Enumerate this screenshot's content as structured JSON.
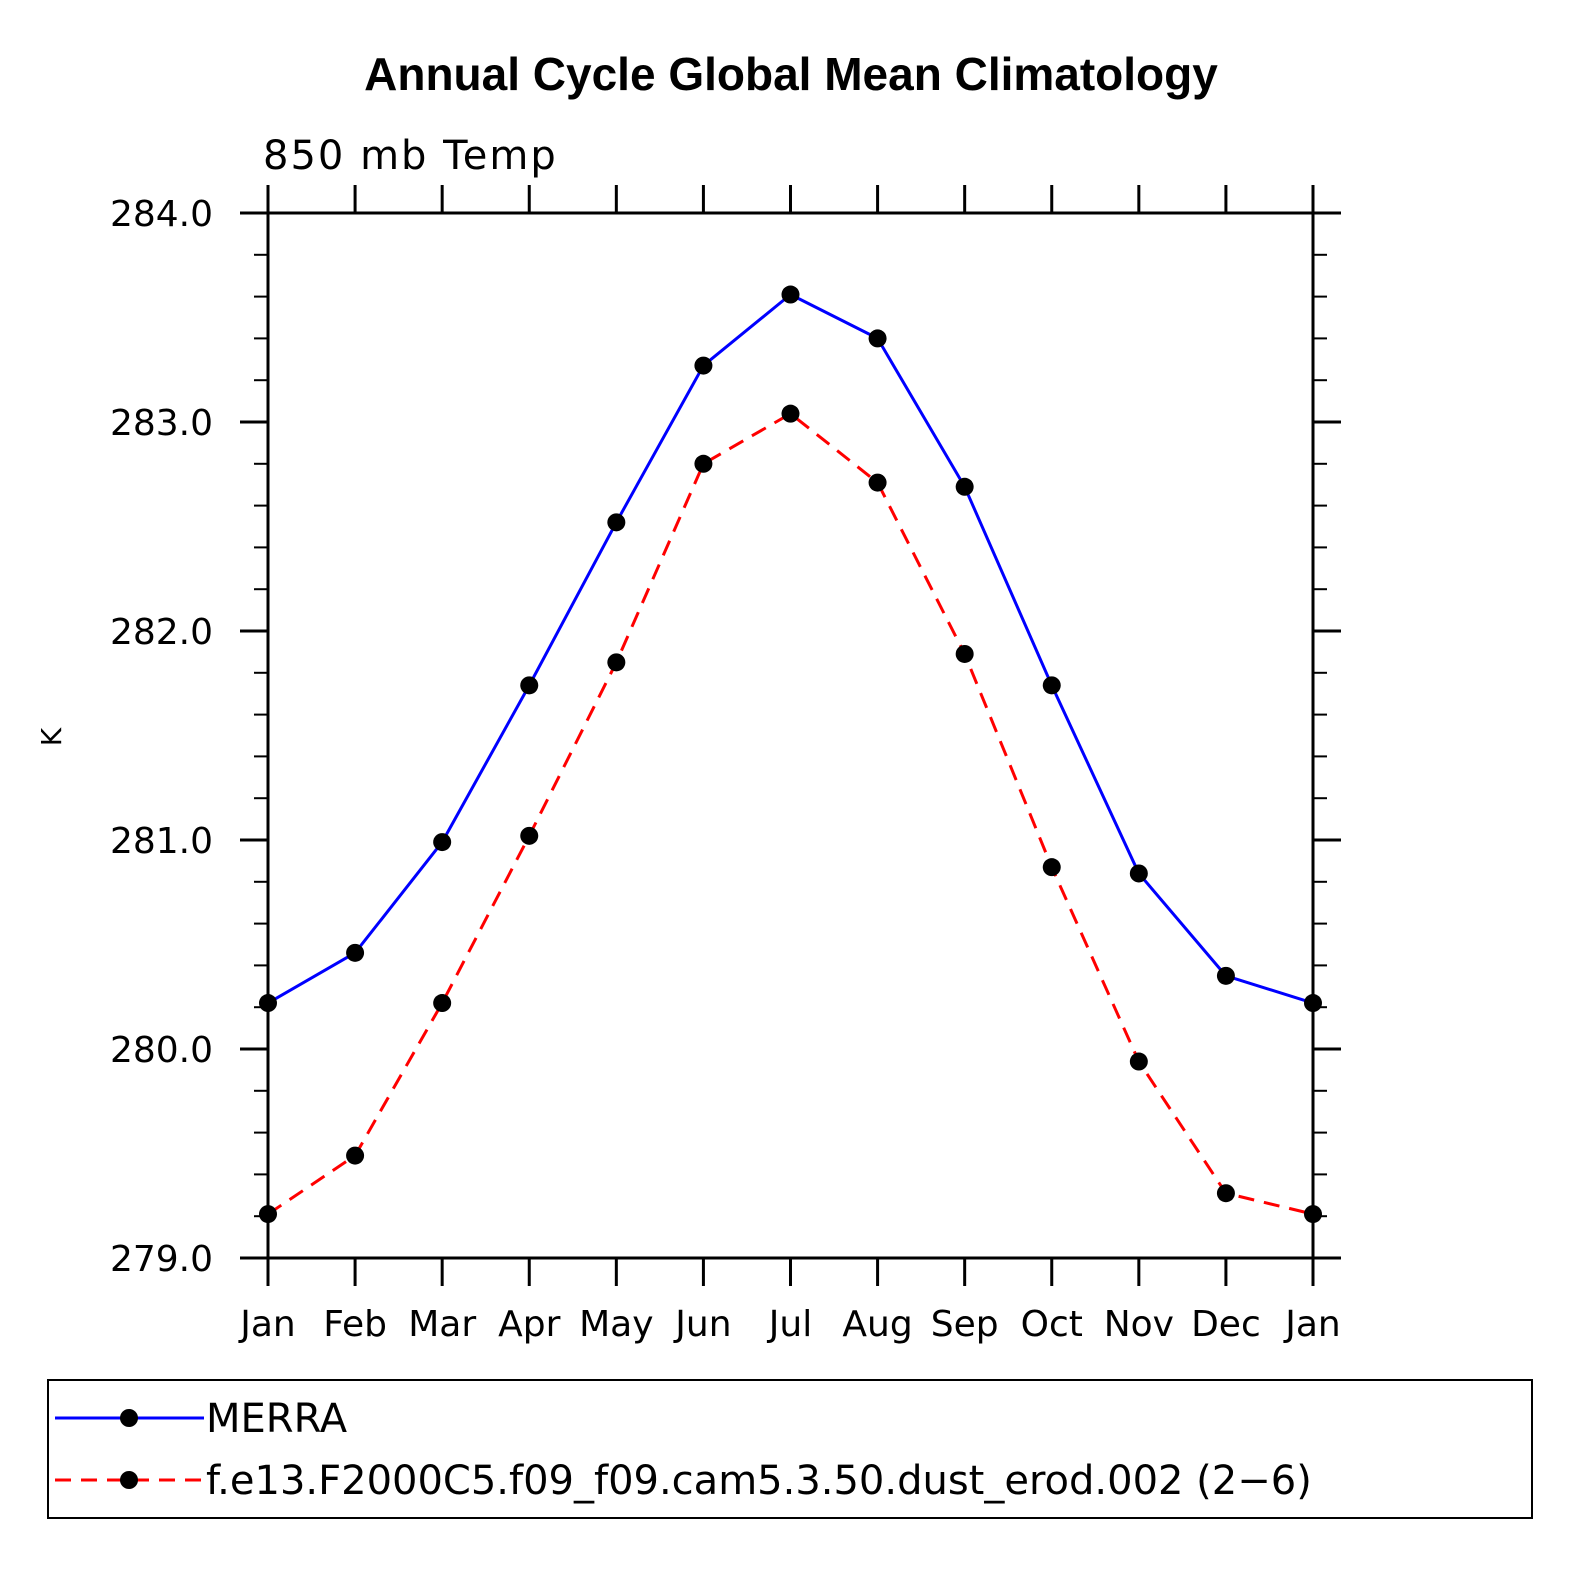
{
  "chart_data": {
    "type": "line",
    "title": "Annual Cycle Global Mean Climatology",
    "subtitle": "850 mb Temp",
    "xlabel": "",
    "ylabel": "K",
    "categories": [
      "Jan",
      "Feb",
      "Mar",
      "Apr",
      "May",
      "Jun",
      "Jul",
      "Aug",
      "Sep",
      "Oct",
      "Nov",
      "Dec",
      "Jan"
    ],
    "ylim": [
      279.0,
      284.0
    ],
    "yticks": [
      279.0,
      280.0,
      281.0,
      282.0,
      283.0,
      284.0
    ],
    "ytick_labels": [
      "279.0",
      "280.0",
      "281.0",
      "282.0",
      "283.0",
      "284.0"
    ],
    "grid": false,
    "legend_position": "bottom",
    "series": [
      {
        "name": "MERRA",
        "color": "#0000ff",
        "style": "solid",
        "values": [
          280.22,
          280.46,
          280.99,
          281.74,
          282.52,
          283.27,
          283.61,
          283.4,
          282.69,
          281.74,
          280.84,
          280.35,
          280.22
        ]
      },
      {
        "name": "f.e13.F2000C5.f09_f09.cam5.3.50.dust_erod.002 (2−6)",
        "color": "#ff0000",
        "style": "dashed",
        "values": [
          279.21,
          279.49,
          280.22,
          281.02,
          281.85,
          282.8,
          283.04,
          282.71,
          281.89,
          280.87,
          279.94,
          279.31,
          279.21
        ]
      }
    ]
  }
}
